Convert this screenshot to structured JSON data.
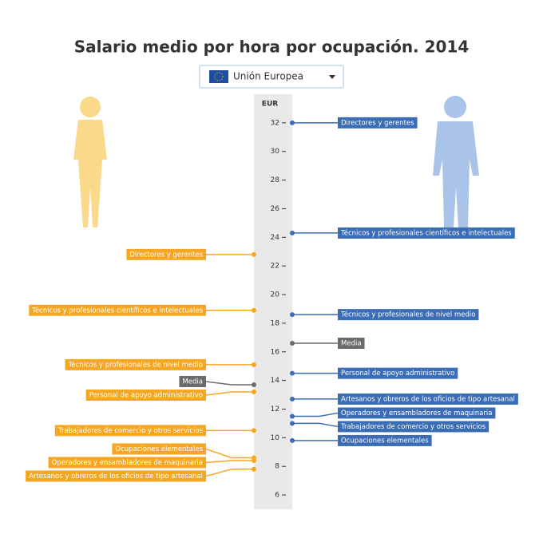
{
  "chart_data": {
    "type": "dual-dot",
    "title": "Salario medio por hora por ocupación. 2014",
    "selector": "Unión Europea",
    "axis_label": "EUR",
    "ylim": [
      5,
      34
    ],
    "yticks": [
      6,
      8,
      10,
      12,
      14,
      16,
      18,
      20,
      22,
      24,
      26,
      28,
      30,
      32
    ],
    "series": [
      {
        "side": "left",
        "color": "#f5a623",
        "categories": [
          "Directores y gerentes",
          "Técnicos y profesionales científicos e intelectuales",
          "Técnicos y profesionales de nivel medio",
          "Media",
          "Personal de apoyo administrativo",
          "Trabajadores de comercio y otros servicios",
          "Ocupaciones elementales",
          "Operadores y ensambladores de maquinaria",
          "Artesanos y obreros de los oficios de tipo artesanal"
        ],
        "values": [
          22.8,
          18.9,
          15.1,
          13.7,
          13.2,
          10.5,
          8.6,
          8.4,
          7.8
        ],
        "colors": [
          "#f5a623",
          "#f5a623",
          "#f5a623",
          "#6b6b6b",
          "#f5a623",
          "#f5a623",
          "#f5a623",
          "#f5a623",
          "#f5a623"
        ]
      },
      {
        "side": "right",
        "color": "#3a6db5",
        "categories": [
          "Directores y gerentes",
          "Técnicos y profesionales científicos e intelectuales",
          "Técnicos y profesionales de nivel medio",
          "Media",
          "Personal de apoyo administrativo",
          "Artesanos y obreros de los oficios de tipo artesanal",
          "Operadores y ensambladores de maquinaria",
          "Trabajadores de comercio y otros servicios",
          "Ocupaciones elementales"
        ],
        "values": [
          32,
          24.3,
          18.6,
          16.6,
          14.5,
          12.7,
          11.5,
          11.0,
          9.8
        ],
        "colors": [
          "#3a6db5",
          "#3a6db5",
          "#3a6db5",
          "#6b6b6b",
          "#3a6db5",
          "#3a6db5",
          "#3a6db5",
          "#3a6db5",
          "#3a6db5"
        ]
      }
    ]
  }
}
